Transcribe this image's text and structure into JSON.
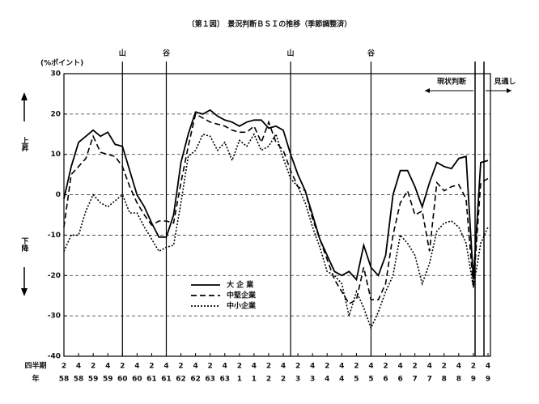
{
  "chart_data": {
    "type": "line",
    "title": "〔第１図〕　景況判断ＢＳＩの推移（季節調整済）",
    "y_label": "(%ポイント)",
    "up_label": "上昇",
    "down_label": "下降",
    "quarter_row_label": "四半期",
    "year_row_label": "年",
    "categories": [
      "2",
      null,
      "4",
      null,
      "2",
      null,
      "4",
      null,
      "2",
      null,
      "4",
      null,
      "2",
      null,
      "4",
      null,
      "2",
      null,
      "4",
      null,
      "2",
      null,
      "4",
      null,
      "2",
      null,
      "4",
      null,
      "2",
      null,
      "4",
      null,
      "2",
      null,
      "4",
      null,
      "2",
      null,
      "4",
      null,
      "2",
      null,
      "4",
      null,
      "2",
      null,
      "4",
      null,
      "2",
      null,
      "4",
      null,
      "2",
      null,
      "4",
      null,
      "2",
      null,
      "4"
    ],
    "years": [
      "58",
      null,
      "58",
      null,
      "59",
      null,
      "59",
      null,
      "60",
      null,
      "60",
      null,
      "61",
      null,
      "61",
      null,
      "62",
      null,
      "62",
      null,
      "63",
      null,
      "63",
      null,
      "1",
      null,
      "1",
      null,
      "2",
      null,
      "2",
      null,
      "3",
      null,
      "3",
      null,
      "4",
      null,
      "4",
      null,
      "5",
      null,
      "5",
      null,
      "6",
      null,
      "6",
      null,
      "7",
      null,
      "7",
      null,
      "8",
      null,
      "8",
      null,
      "9",
      null,
      "9"
    ],
    "ylim": [
      -40,
      30
    ],
    "yticks": [
      -40,
      -30,
      -20,
      -10,
      0,
      10,
      20,
      30
    ],
    "grid": true,
    "cycle_marks": [
      {
        "label": "山",
        "index": 8
      },
      {
        "label": "谷",
        "index": 14
      },
      {
        "label": "山",
        "index": 31
      },
      {
        "label": "谷",
        "index": 42
      }
    ],
    "period_labels": [
      "現状判断",
      "見通し"
    ],
    "series": [
      {
        "name": "大 企 業",
        "color": "#000",
        "style": "solid",
        "values": [
          -1,
          7,
          13,
          14.5,
          16,
          14.5,
          15.5,
          12.5,
          12,
          6,
          0,
          -3,
          -7,
          -10.5,
          -10.5,
          -5,
          8,
          15,
          20.5,
          20,
          21,
          19.5,
          18.5,
          18,
          17,
          18,
          18.5,
          18.5,
          16.5,
          17,
          16,
          10,
          5,
          1,
          -5,
          -11,
          -15,
          -19,
          -20,
          -19,
          -21,
          -12.5,
          -18,
          -20,
          -15,
          0,
          6,
          6,
          2,
          -3,
          3,
          8,
          7,
          6.5,
          9,
          9.5,
          -21,
          8,
          8.5
        ]
      },
      {
        "name": "中堅企業",
        "color": "#000",
        "style": "dashed",
        "values": [
          -8,
          5,
          7,
          9,
          14.5,
          10.5,
          10,
          9.5,
          7,
          2,
          -2,
          -5,
          -7.5,
          -6.5,
          -6.5,
          -7,
          3,
          12,
          20,
          19,
          18,
          17.5,
          17,
          16,
          15.5,
          15.5,
          17,
          13,
          18,
          13,
          11,
          6,
          2,
          1,
          -6,
          -11,
          -16,
          -21,
          -24,
          -27,
          -26,
          -18,
          -26,
          -26,
          -22,
          -10,
          -2,
          1,
          -5,
          -4,
          -14,
          3,
          1,
          2,
          2.5,
          -1,
          -23,
          3,
          4
        ]
      },
      {
        "name": "中小企業",
        "color": "#000",
        "style": "dotted",
        "values": [
          -14,
          -10,
          -10,
          -4,
          0,
          -2,
          -3,
          -1.5,
          0,
          -4.5,
          -4.5,
          -8,
          -11,
          -14,
          -13,
          -12.5,
          -2,
          9.5,
          11,
          15,
          14.5,
          11,
          13,
          8.5,
          13.5,
          12,
          15,
          11,
          12,
          15,
          9,
          4,
          2,
          -2,
          -8,
          -13,
          -19,
          -20,
          -22,
          -30,
          -24,
          -28,
          -33,
          -29,
          -24,
          -20,
          -10,
          -12,
          -15,
          -22,
          -17,
          -9,
          -7,
          -6.5,
          -8,
          -12,
          -23,
          -12,
          -8
        ]
      }
    ]
  }
}
